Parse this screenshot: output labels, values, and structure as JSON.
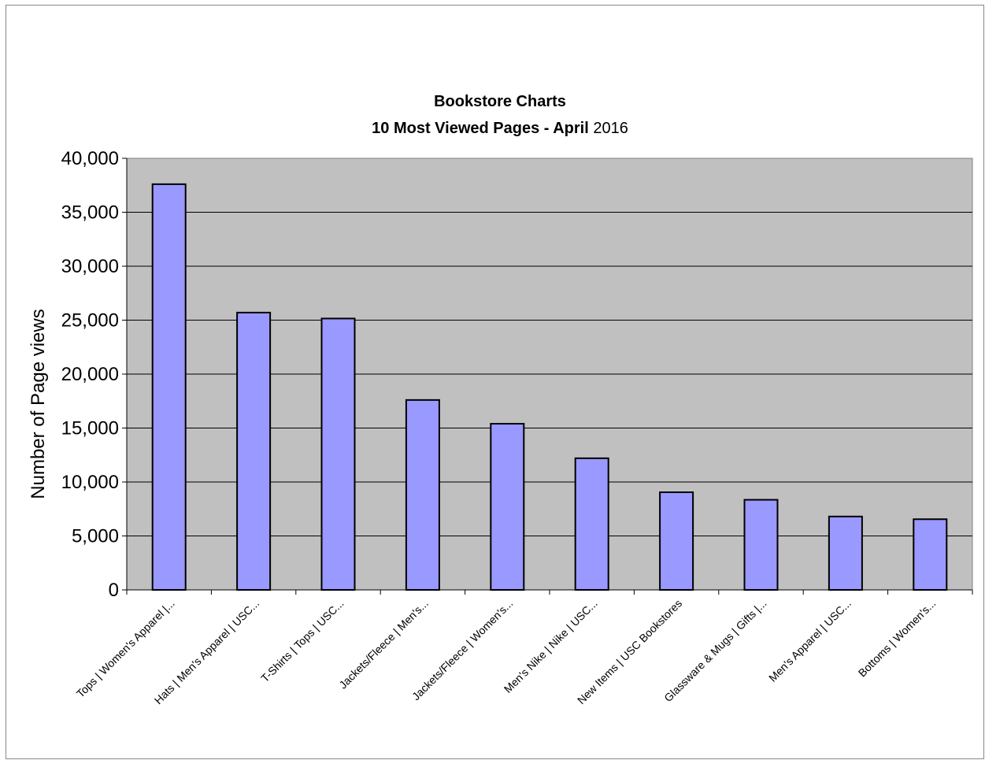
{
  "chart_data": {
    "type": "bar",
    "title": {
      "line1": "Bookstore Charts",
      "line2_bold": "10 Most Viewed Pages - April",
      "line2_normal": " 2016"
    },
    "xlabel": "",
    "ylabel": "Number of Page views",
    "ylim": [
      0,
      40000
    ],
    "yticks": [
      {
        "value": 0,
        "label": "0"
      },
      {
        "value": 5000,
        "label": "5,000"
      },
      {
        "value": 10000,
        "label": "10,000"
      },
      {
        "value": 15000,
        "label": "15,000"
      },
      {
        "value": 20000,
        "label": "20,000"
      },
      {
        "value": 25000,
        "label": "25,000"
      },
      {
        "value": 30000,
        "label": "30,000"
      },
      {
        "value": 35000,
        "label": "35,000"
      },
      {
        "value": 40000,
        "label": "40,000"
      }
    ],
    "categories": [
      "Tops | Women's Apparel |...",
      "Hats | Men's Apparel | USC...",
      "T-Shirts | Tops | USC...",
      "Jackets/Fleece | Men's...",
      "Jackets/Fleece | Women's...",
      "Men's Nike | Nike | USC...",
      "New Items | USC Bookstores",
      "Glassware & Mugs | Gifts |...",
      "Men's Apparel | USC...",
      "Bottoms | Women's..."
    ],
    "values": [
      37600,
      25700,
      25150,
      17600,
      15400,
      12200,
      9050,
      8350,
      6800,
      6550
    ],
    "grid": true,
    "legend": "none",
    "colors": {
      "bar_fill": "#9999ff",
      "bar_stroke": "#000000",
      "plot_background": "#c0c0c0",
      "gridline": "#000000"
    }
  }
}
